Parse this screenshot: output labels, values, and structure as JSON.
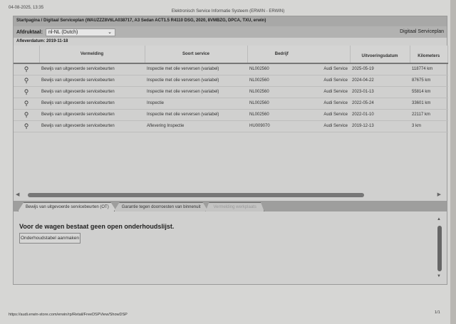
{
  "print_header": {
    "datetime": "04-08-2025, 13:35",
    "title": "Elektronisch Service Informatie Systeem (ERWIN - ERWIN)"
  },
  "breadcrumb": "Startpagina / Digitaal Serviceplan (WAUZZZ8V6LA038717, A3 Sedan ACT1.5 R4110 DSG, 2020, 8VMBZG, DPCA, TXU, erwin)",
  "language": {
    "label": "Afdruktaal:",
    "selected": "nl-NL (Dutch)"
  },
  "section_title": "Digitaal Serviceplan",
  "delivery_date": "Afleverdatum: 2019-11-18",
  "table": {
    "columns": [
      "",
      "Vermelding",
      "Soort service",
      "Bedrijf",
      "",
      "Uitvoeringsdatum",
      "Kilometers"
    ],
    "rows": [
      {
        "entry": "Bewijs van uitgevoerde servicebeurten",
        "service": "Inspectie met olie verversen (variabel)",
        "company_id": "NL002560",
        "company": "Audi Service",
        "date": "2025-05-19",
        "km": "118774 km"
      },
      {
        "entry": "Bewijs van uitgevoerde servicebeurten",
        "service": "Inspectie met olie verversen (variabel)",
        "company_id": "NL002560",
        "company": "Audi Service",
        "date": "2024-04-22",
        "km": "87675 km"
      },
      {
        "entry": "Bewijs van uitgevoerde servicebeurten",
        "service": "Inspectie met olie verversen (variabel)",
        "company_id": "NL002560",
        "company": "Audi Service",
        "date": "2023-01-13",
        "km": "55814 km"
      },
      {
        "entry": "Bewijs van uitgevoerde servicebeurten",
        "service": "Inspectie",
        "company_id": "NL002560",
        "company": "Audi Service",
        "date": "2022-05-24",
        "km": "33601 km"
      },
      {
        "entry": "Bewijs van uitgevoerde servicebeurten",
        "service": "Inspectie met olie verversen (variabel)",
        "company_id": "NL002560",
        "company": "Audi Service",
        "date": "2022-01-10",
        "km": "22117 km"
      },
      {
        "entry": "Bewijs van uitgevoerde servicebeurten",
        "service": "Aflevering Inspectie",
        "company_id": "HU009070",
        "company": "Audi Service",
        "date": "2019-12-13",
        "km": "3 km"
      }
    ]
  },
  "tabs": [
    {
      "label": "Bewijs van uitgevoerde servicebeurten (OT)",
      "state": "active"
    },
    {
      "label": "Garantie tegen doorroesten van binnenuit",
      "state": "normal"
    },
    {
      "label": "Vermelding werkplaats",
      "state": "disabled"
    }
  ],
  "content": {
    "message": "Voor de wagen bestaat geen open onderhoudslijst.",
    "button": "Onderhoudstabel aanmaken"
  },
  "footer": {
    "url": "https://audi.erwin-store.com/erwin/rp/Retail/FreeDSPView/ShowDSP",
    "page": "1/1"
  }
}
